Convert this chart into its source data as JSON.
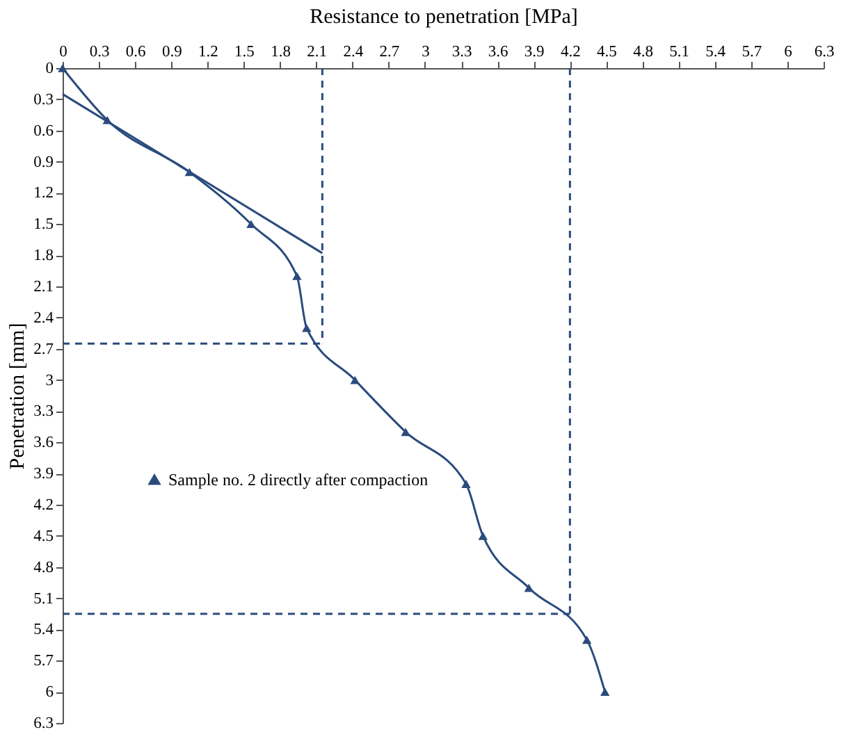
{
  "chart_data": {
    "type": "line",
    "xlabel": "Resistance to penetration [MPa]",
    "ylabel": "Penetration [mm]",
    "xlim": [
      0,
      6.3
    ],
    "xticks": [
      0,
      0.3,
      0.6,
      0.9,
      1.2,
      1.5,
      1.8,
      2.1,
      2.4,
      2.7,
      3,
      3.3,
      3.6,
      3.9,
      4.2,
      4.5,
      4.8,
      5.1,
      5.4,
      5.7,
      6,
      6.3
    ],
    "ylim": [
      6.3,
      0
    ],
    "yticks": [
      0,
      0.3,
      0.6,
      0.9,
      1.2,
      1.5,
      1.8,
      2.1,
      2.4,
      2.7,
      3,
      3.3,
      3.6,
      3.9,
      4.2,
      4.5,
      4.8,
      5.1,
      5.4,
      5.7,
      6,
      6.3
    ],
    "grid": false,
    "legend": "left",
    "series": [
      {
        "name": "Sample no. 2 directly after compaction",
        "color": "#2a4b7c",
        "marker": "triangle",
        "line_style": "solid",
        "x": [
          0,
          0.37,
          1.05,
          1.56,
          1.94,
          2.02,
          2.42,
          2.84,
          3.34,
          3.48,
          3.86,
          4.34,
          4.49
        ],
        "values": [
          0,
          0.5,
          1.0,
          1.5,
          2.0,
          2.5,
          3.0,
          3.5,
          4.0,
          4.5,
          5.0,
          5.5,
          6.0
        ]
      },
      {
        "color": "#2a4b7c",
        "marker": "none",
        "line_style": "solid",
        "x": [
          0,
          2.15
        ],
        "values": [
          0.25,
          1.78
        ]
      },
      {
        "color": "#2a4b7c",
        "marker": "none",
        "line_style": "dashed",
        "x": [
          2.15,
          2.15
        ],
        "values": [
          0,
          2.65
        ]
      },
      {
        "color": "#2a4b7c",
        "marker": "none",
        "line_style": "dashed",
        "x": [
          0,
          2.15
        ],
        "values": [
          2.65,
          2.65
        ]
      },
      {
        "color": "#2a4b7c",
        "marker": "none",
        "line_style": "dashed",
        "x": [
          4.2,
          4.2
        ],
        "values": [
          0,
          5.25
        ]
      },
      {
        "color": "#2a4b7c",
        "marker": "none",
        "line_style": "dashed",
        "x": [
          0,
          4.2
        ],
        "values": [
          5.25,
          5.25
        ]
      }
    ]
  }
}
